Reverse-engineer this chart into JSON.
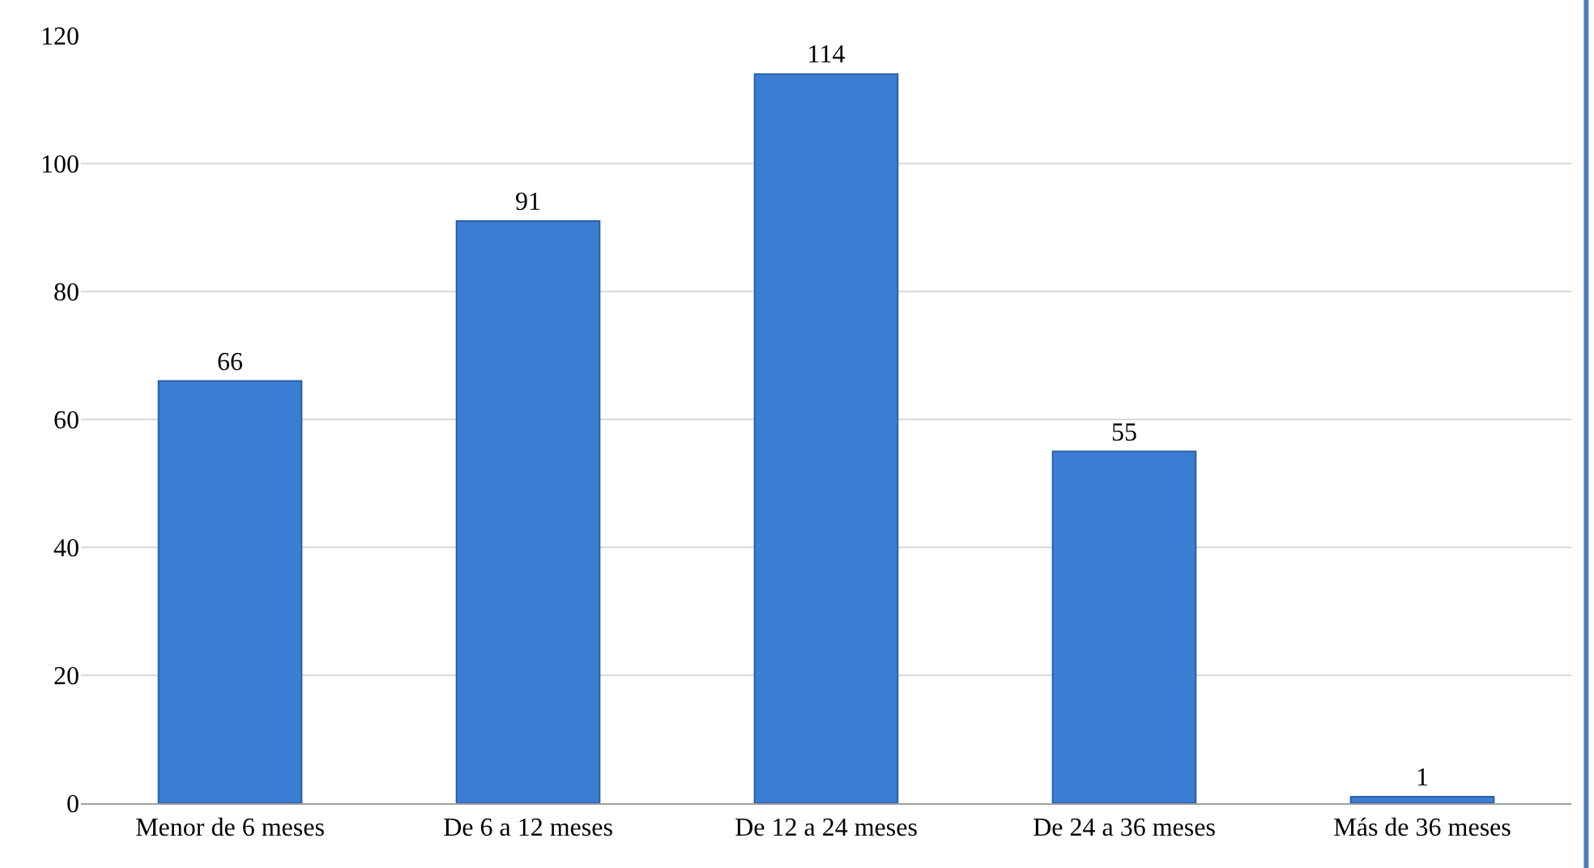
{
  "chart_data": {
    "type": "bar",
    "categories": [
      "Menor de 6 meses",
      "De 6 a 12 meses",
      "De 12 a 24 meses",
      "De 24 a 36 meses",
      "Más de 36 meses"
    ],
    "values": [
      66,
      91,
      114,
      55,
      1
    ],
    "color": "#3c7dd4",
    "ylim": [
      0,
      120
    ],
    "yticks": [
      0,
      20,
      40,
      60,
      80,
      100,
      120
    ],
    "grid": "y",
    "data_labels": true,
    "legend": false
  }
}
